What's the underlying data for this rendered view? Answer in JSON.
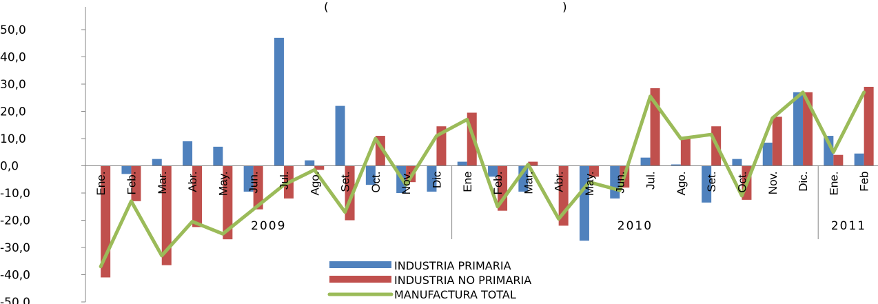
{
  "chart_data": {
    "type": "bar",
    "title": "(",
    "title_end": ")",
    "yticks": [
      "50,0",
      "40,0",
      "30,0",
      "20,0",
      "10,0",
      "0,0",
      "-10,0",
      "-20,0",
      "-30,0",
      "-40,0",
      "-50,0"
    ],
    "ylim": [
      -50,
      50
    ],
    "categories": [
      "Ene.",
      "Feb.",
      "Mar.",
      "Abr.",
      "May.",
      "Jun.",
      "Jul.",
      "Ago.",
      "Set.",
      "Oct.",
      "Nov.",
      "Dic",
      "Ene",
      "Feb.",
      "Mar.",
      "Abr.",
      "May.",
      "Jun.",
      "Jul.",
      "Ago.",
      "Set.",
      "Oct.",
      "Nov.",
      "Dic.",
      "Ene.",
      "Feb"
    ],
    "years": [
      {
        "label": "2009",
        "start": 0,
        "end": 11
      },
      {
        "label": "2010",
        "start": 12,
        "end": 23
      },
      {
        "label": "2011",
        "start": 24,
        "end": 25
      }
    ],
    "series": [
      {
        "name": "INDUSTRIA PRIMARIA",
        "kind": "bar",
        "color": "#4F81BD",
        "values": [
          0,
          -3,
          2.5,
          9,
          7,
          -9.5,
          47,
          2,
          22,
          -7,
          -10,
          -9.5,
          1.5,
          -4,
          -9.5,
          0,
          -27.5,
          -12,
          3,
          0.5,
          -13.5,
          2.5,
          8.5,
          27,
          11,
          4.5
        ]
      },
      {
        "name": "INDUSTRIA NO PRIMARIA",
        "kind": "bar",
        "color": "#C0504D",
        "values": [
          -41,
          -13,
          -36.5,
          -22.5,
          -27,
          -16,
          -12,
          -1.5,
          -20,
          11,
          -6,
          14.5,
          19.5,
          -16.5,
          1.5,
          -22,
          -4,
          -8,
          28.5,
          10,
          14.5,
          -12.5,
          18,
          27,
          4,
          29
        ]
      },
      {
        "name": "MANUFACTURA TOTAL",
        "kind": "line",
        "color": "#9BBB59",
        "values": [
          -37,
          -13,
          -33,
          -20.5,
          -25,
          -16,
          -7,
          -1.5,
          -17,
          10,
          -7,
          11,
          17,
          -15,
          0.5,
          -19.5,
          -6,
          -9,
          25.5,
          10,
          11.5,
          -11,
          17.5,
          27,
          5,
          27
        ]
      }
    ],
    "legend_position": "bottom-center",
    "grid": false
  }
}
